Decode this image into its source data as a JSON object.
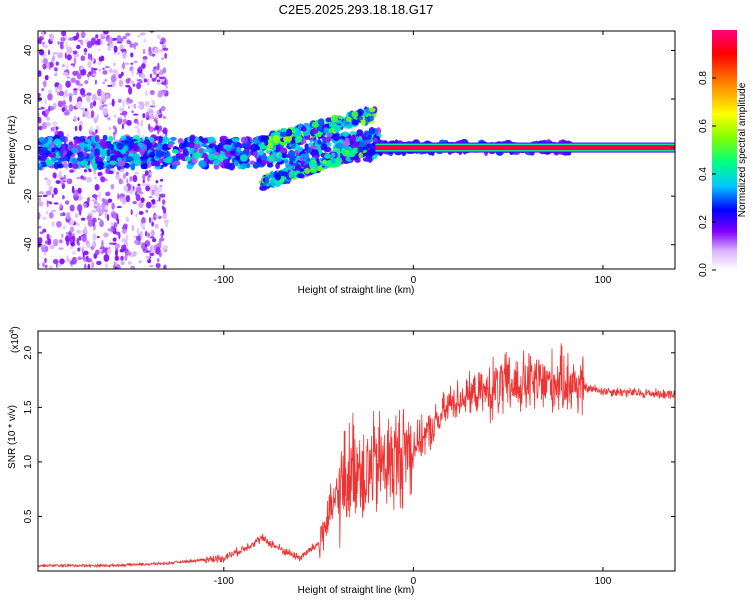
{
  "chart_data": [
    {
      "type": "heatmap",
      "title": "C2E5.2025.293.18.18.G17",
      "xlabel": "Height of straight line (km)",
      "ylabel": "Frequency (Hz)",
      "xlim": [
        -198,
        138
      ],
      "ylim": [
        -50,
        48
      ],
      "x_ticks": [
        -100,
        0,
        100
      ],
      "x_tick_labels": [
        "-100",
        "0",
        "100"
      ],
      "y_ticks": [
        -40,
        -20,
        0,
        20,
        40
      ],
      "y_tick_labels": [
        "-40",
        "-20",
        "0",
        "20",
        "40"
      ],
      "colorbar": {
        "label": "Normalized spectral amplitude",
        "range": [
          0,
          1
        ],
        "ticks": [
          0.0,
          0.2,
          0.4,
          0.6,
          0.8
        ],
        "tick_labels": [
          "0.0",
          "0.2",
          "0.4",
          "0.6",
          "0.8"
        ],
        "colors": [
          "#ffffff",
          "#d9b3ff",
          "#8000ff",
          "#0000ff",
          "#00c8ff",
          "#00ff80",
          "#80ff00",
          "#ffff00",
          "#ff8000",
          "#ff0000",
          "#ff0080"
        ]
      },
      "features": {
        "strong_carrier_line": {
          "x_range": [
            -20,
            138
          ],
          "frequency": 0,
          "amplitude": 0.95
        },
        "upper_branch": {
          "x_range": [
            -80,
            -20
          ],
          "frequency_range": [
            2,
            14
          ],
          "amplitude": 0.45
        },
        "lower_branch": {
          "x_range": [
            -80,
            -25
          ],
          "frequency_range": [
            -15,
            0
          ],
          "amplitude": 0.4
        },
        "noise_region": {
          "x_range": [
            -198,
            -140
          ],
          "frequency_range": [
            -50,
            48
          ],
          "amplitude": 0.1
        }
      }
    },
    {
      "type": "line",
      "xlabel": "Height of straight line (km)",
      "ylabel": "SNR (10 * v/v)",
      "y_scale_label": "(x10",
      "y_scale_exponent": "4",
      "xlim": [
        -198,
        138
      ],
      "ylim": [
        0,
        2.2
      ],
      "x_ticks": [
        -100,
        0,
        100
      ],
      "x_tick_labels": [
        "-100",
        "0",
        "100"
      ],
      "y_ticks": [
        0.5,
        1.0,
        1.5,
        2.0
      ],
      "y_tick_labels": [
        "0.5",
        "1.0",
        "1.5",
        "2.0"
      ],
      "series": [
        {
          "name": "SNR",
          "color": "#ee3333",
          "x": [
            -198,
            -160,
            -130,
            -100,
            -90,
            -80,
            -70,
            -60,
            -50,
            -40,
            -30,
            -25,
            -20,
            -15,
            -10,
            -5,
            0,
            10,
            20,
            30,
            40,
            50,
            60,
            70,
            80,
            90,
            100,
            110,
            120,
            138
          ],
          "y": [
            0.05,
            0.05,
            0.07,
            0.12,
            0.2,
            0.3,
            0.2,
            0.12,
            0.25,
            0.7,
            1.0,
            0.9,
            0.95,
            1.0,
            1.0,
            1.1,
            1.15,
            1.3,
            1.55,
            1.62,
            1.65,
            1.7,
            1.72,
            1.72,
            1.75,
            1.68,
            1.65,
            1.64,
            1.63,
            1.62
          ]
        }
      ]
    }
  ]
}
